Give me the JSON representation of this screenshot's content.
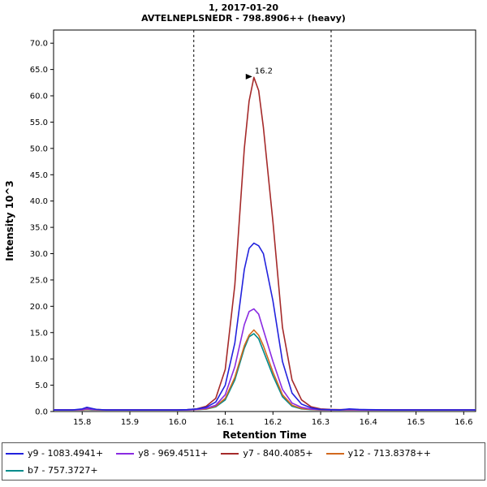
{
  "header": {
    "line1": "1, 2017-01-20",
    "line2": "AVTELNEPLSNEDR - 798.8906++ (heavy)"
  },
  "chart_data": {
    "type": "line",
    "title": "1, 2017-01-20",
    "subtitle": "AVTELNEPLSNEDR - 798.8906++ (heavy)",
    "xlabel": "Retention Time",
    "ylabel": "Intensity 10^3",
    "xlim": [
      15.74,
      16.625
    ],
    "ylim": [
      0,
      72.5
    ],
    "xticks": [
      "15.8",
      "15.9",
      "16.0",
      "16.1",
      "16.2",
      "16.3",
      "16.4",
      "16.5",
      "16.6"
    ],
    "yticks": [
      "0.0",
      "5.0",
      "10.0",
      "15.0",
      "20.0",
      "25.0",
      "30.0",
      "35.0",
      "40.0",
      "45.0",
      "50.0",
      "55.0",
      "60.0",
      "65.0",
      "70.0"
    ],
    "boundaries": [
      16.034,
      16.322
    ],
    "annotation": {
      "text": "16.2",
      "x": 16.16,
      "y": 63.5,
      "color": "#b22222"
    },
    "x": [
      15.74,
      15.78,
      15.8,
      15.81,
      15.82,
      15.83,
      15.85,
      15.88,
      15.9,
      15.95,
      16.0,
      16.02,
      16.04,
      16.06,
      16.08,
      16.1,
      16.12,
      16.14,
      16.15,
      16.16,
      16.17,
      16.18,
      16.2,
      16.22,
      16.24,
      16.26,
      16.28,
      16.3,
      16.32,
      16.34,
      16.36,
      16.38,
      16.4,
      16.45,
      16.5,
      16.55,
      16.6,
      16.625
    ],
    "series": [
      {
        "name": "y9 - 1083.4941+",
        "color": "#2222dd",
        "y": [
          0.3,
          0.3,
          0.5,
          0.8,
          0.6,
          0.4,
          0.3,
          0.3,
          0.3,
          0.3,
          0.3,
          0.35,
          0.5,
          0.8,
          1.8,
          5,
          13,
          27,
          31,
          32,
          31.5,
          30,
          21,
          9.5,
          3.5,
          1.4,
          0.7,
          0.4,
          0.35,
          0.3,
          0.5,
          0.4,
          0.35,
          0.3,
          0.3,
          0.3,
          0.3,
          0.3
        ]
      },
      {
        "name": "y8 - 969.4511+",
        "color": "#8a2be2",
        "y": [
          0.3,
          0.3,
          0.35,
          0.5,
          0.4,
          0.35,
          0.3,
          0.3,
          0.3,
          0.3,
          0.3,
          0.3,
          0.4,
          0.6,
          1.2,
          3.2,
          8.5,
          16.5,
          19,
          19.5,
          18.5,
          15.5,
          9.5,
          4.2,
          1.6,
          0.8,
          0.45,
          0.35,
          0.3,
          0.3,
          0.35,
          0.3,
          0.3,
          0.3,
          0.3,
          0.3,
          0.3,
          0.3
        ]
      },
      {
        "name": "y7 - 840.4085+",
        "color": "#a52a2a",
        "y": [
          0.3,
          0.3,
          0.4,
          0.6,
          0.5,
          0.4,
          0.3,
          0.3,
          0.3,
          0.3,
          0.3,
          0.35,
          0.5,
          1.0,
          2.5,
          8,
          24,
          50,
          59,
          63.5,
          61,
          54,
          36,
          16,
          6,
          2.2,
          0.9,
          0.5,
          0.4,
          0.35,
          0.4,
          0.35,
          0.3,
          0.3,
          0.3,
          0.3,
          0.3,
          0.3
        ]
      },
      {
        "name": "y12 - 713.8378++",
        "color": "#d2691e",
        "y": [
          0.3,
          0.3,
          0.3,
          0.4,
          0.35,
          0.3,
          0.3,
          0.3,
          0.3,
          0.3,
          0.3,
          0.3,
          0.35,
          0.5,
          1.0,
          2.5,
          6.5,
          12.5,
          14.5,
          15.5,
          14.5,
          12.5,
          7.5,
          3.2,
          1.2,
          0.55,
          0.4,
          0.3,
          0.3,
          0.3,
          0.3,
          0.3,
          0.3,
          0.3,
          0.3,
          0.3,
          0.3,
          0.3
        ]
      },
      {
        "name": "b7 - 757.3727+",
        "color": "#008b8b",
        "y": [
          0.3,
          0.3,
          0.3,
          0.35,
          0.3,
          0.3,
          0.3,
          0.3,
          0.3,
          0.3,
          0.3,
          0.3,
          0.35,
          0.45,
          0.9,
          2.2,
          6,
          12,
          14.2,
          14.8,
          13.8,
          11.5,
          6.8,
          2.8,
          1.0,
          0.5,
          0.35,
          0.3,
          0.3,
          0.3,
          0.3,
          0.3,
          0.3,
          0.3,
          0.3,
          0.3,
          0.3,
          0.3
        ]
      }
    ],
    "legend_position": "bottom",
    "grid": false
  },
  "legend": {
    "per_row": 4,
    "items": [
      {
        "label": "y9 - 1083.4941+",
        "color": "#2222dd"
      },
      {
        "label": "y8 - 969.4511+",
        "color": "#8a2be2"
      },
      {
        "label": "y7 - 840.4085+",
        "color": "#a52a2a"
      },
      {
        "label": "y12 - 713.8378++",
        "color": "#d2691e"
      },
      {
        "label": "b7 - 757.3727+",
        "color": "#008b8b"
      }
    ]
  }
}
